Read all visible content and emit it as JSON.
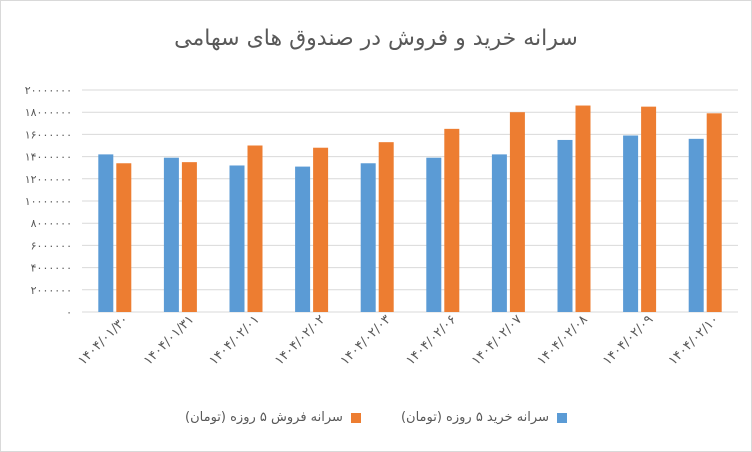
{
  "chart_data": {
    "type": "bar",
    "title": "سرانه خرید و فروش در صندوق های سهامی",
    "categories": [
      "۱۴۰۴/۰۱/۳۰",
      "۱۴۰۴/۰۱/۳۱",
      "۱۴۰۴/۰۲/۰۱",
      "۱۴۰۴/۰۲/۰۲",
      "۱۴۰۴/۰۲/۰۳",
      "۱۴۰۴/۰۲/۰۶",
      "۱۴۰۴/۰۲/۰۷",
      "۱۴۰۴/۰۲/۰۸",
      "۱۴۰۴/۰۲/۰۹",
      "۱۴۰۴/۰۲/۱۰"
    ],
    "series": [
      {
        "name": "سرانه خرید ۵ روزه (تومان)",
        "color": "#5b9bd5",
        "values": [
          14200000,
          13900000,
          13200000,
          13100000,
          13400000,
          13900000,
          14200000,
          15500000,
          15900000,
          15600000
        ]
      },
      {
        "name": "سرانه فروش ۵ روزه (تومان)",
        "color": "#ed7d31",
        "values": [
          13400000,
          13500000,
          15000000,
          14800000,
          15300000,
          16500000,
          18000000,
          18600000,
          18500000,
          17900000
        ]
      }
    ],
    "ylim": [
      0,
      20000000
    ],
    "yticks": [
      0,
      2000000,
      4000000,
      6000000,
      8000000,
      10000000,
      12000000,
      14000000,
      16000000,
      18000000,
      20000000
    ],
    "ytick_labels": [
      "۰",
      "۲۰۰۰۰۰۰",
      "۴۰۰۰۰۰۰",
      "۶۰۰۰۰۰۰",
      "۸۰۰۰۰۰۰",
      "۱۰۰۰۰۰۰۰",
      "۱۲۰۰۰۰۰۰",
      "۱۴۰۰۰۰۰۰",
      "۱۶۰۰۰۰۰۰",
      "۱۸۰۰۰۰۰۰",
      "۲۰۰۰۰۰۰۰"
    ],
    "grid": true,
    "legend_position": "bottom",
    "gridline_color": "#d9d9d9",
    "text_color": "#595959"
  }
}
